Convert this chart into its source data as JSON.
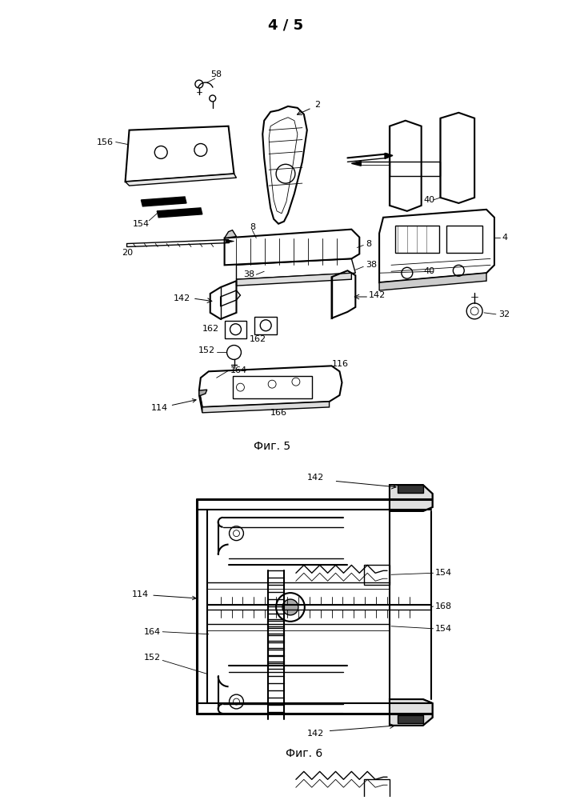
{
  "page_header": "4 / 5",
  "fig5_caption": "Фиг. 5",
  "fig6_caption": "Фиг. 6",
  "bg_color": "#ffffff",
  "lc": "#000000"
}
